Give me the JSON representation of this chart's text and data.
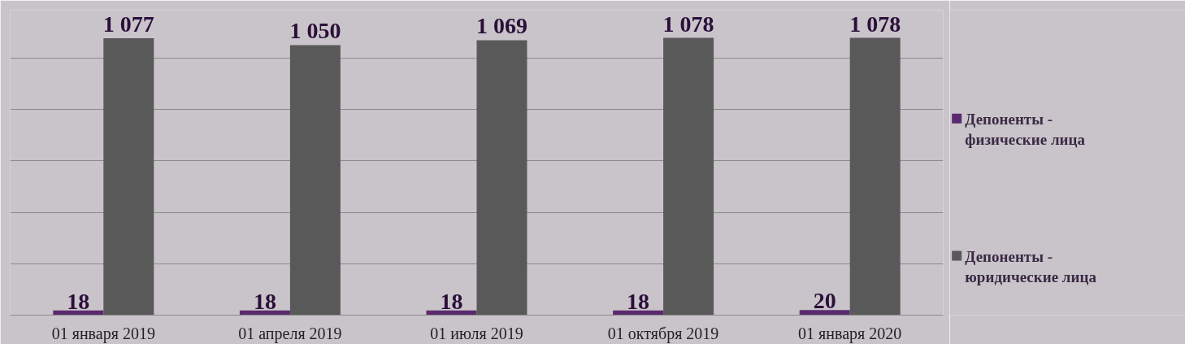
{
  "chart_data": {
    "type": "bar",
    "categories": [
      "01 января 2019",
      "01 апреля 2019",
      "01 июля 2019",
      "01 октября 2019",
      "01 января 2020"
    ],
    "series": [
      {
        "name": "Депоненты - физические лица",
        "color": "#5b2a6e",
        "values": [
          18,
          18,
          18,
          18,
          20
        ]
      },
      {
        "name": "Депоненты - юридические лица",
        "color": "#595959",
        "values": [
          1077,
          1050,
          1069,
          1078,
          1078
        ]
      }
    ],
    "data_labels": true,
    "grid": "y",
    "legend": "right",
    "tick_labels": "x"
  }
}
